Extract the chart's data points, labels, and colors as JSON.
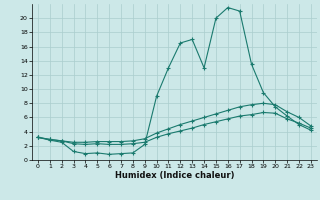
{
  "background_color": "#cce8e8",
  "line_color": "#1a7a6e",
  "grid_color": "#aacece",
  "xlabel": "Humidex (Indice chaleur)",
  "xlim": [
    -0.5,
    23.5
  ],
  "ylim": [
    0,
    22
  ],
  "xticks": [
    0,
    1,
    2,
    3,
    4,
    5,
    6,
    7,
    8,
    9,
    10,
    11,
    12,
    13,
    14,
    15,
    16,
    17,
    18,
    19,
    20,
    21,
    22,
    23
  ],
  "yticks": [
    0,
    2,
    4,
    6,
    8,
    10,
    12,
    14,
    16,
    18,
    20
  ],
  "series": [
    {
      "x": [
        0,
        1,
        2,
        3,
        4,
        5,
        6,
        7,
        8,
        9,
        10,
        11,
        12,
        13,
        14,
        15,
        16,
        17,
        18,
        19,
        20,
        21,
        22,
        23
      ],
      "y": [
        3.2,
        2.8,
        2.5,
        1.2,
        0.9,
        1.0,
        0.8,
        0.9,
        1.0,
        2.2,
        9.0,
        13.0,
        16.5,
        17.0,
        13.0,
        20.0,
        21.5,
        21.0,
        13.5,
        9.5,
        7.5,
        6.2,
        5.0,
        4.2
      ]
    },
    {
      "x": [
        0,
        1,
        2,
        3,
        4,
        5,
        6,
        7,
        8,
        9,
        10,
        11,
        12,
        13,
        14,
        15,
        16,
        17,
        18,
        19,
        20,
        21,
        22,
        23
      ],
      "y": [
        3.2,
        2.9,
        2.7,
        2.5,
        2.5,
        2.6,
        2.6,
        2.6,
        2.7,
        3.0,
        3.8,
        4.4,
        5.0,
        5.5,
        6.0,
        6.5,
        7.0,
        7.5,
        7.8,
        8.0,
        7.8,
        6.8,
        6.0,
        4.8
      ]
    },
    {
      "x": [
        0,
        1,
        2,
        3,
        4,
        5,
        6,
        7,
        8,
        9,
        10,
        11,
        12,
        13,
        14,
        15,
        16,
        17,
        18,
        19,
        20,
        21,
        22,
        23
      ],
      "y": [
        3.2,
        2.9,
        2.7,
        2.3,
        2.2,
        2.3,
        2.2,
        2.2,
        2.3,
        2.5,
        3.2,
        3.7,
        4.1,
        4.5,
        5.0,
        5.4,
        5.8,
        6.2,
        6.4,
        6.7,
        6.6,
        5.8,
        5.2,
        4.5
      ]
    }
  ]
}
